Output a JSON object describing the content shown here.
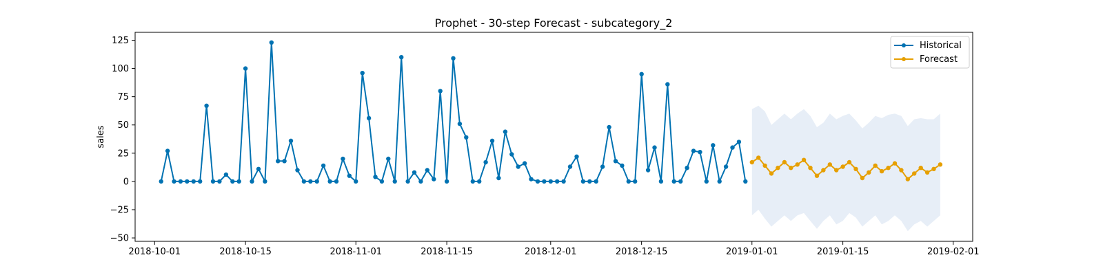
{
  "chart_data": {
    "type": "line",
    "title": "Prophet - 30-step Forecast - subcategory_2",
    "xlabel": "",
    "ylabel": "sales",
    "x_start": "2018-10-02",
    "x_domain": [
      "2018-09-28",
      "2019-02-04"
    ],
    "ylim": [
      -53,
      132
    ],
    "x_ticks": [
      {
        "date": "2018-10-01",
        "label": "2018-10-01"
      },
      {
        "date": "2018-10-15",
        "label": "2018-10-15"
      },
      {
        "date": "2018-11-01",
        "label": "2018-11-01"
      },
      {
        "date": "2018-11-15",
        "label": "2018-11-15"
      },
      {
        "date": "2018-12-01",
        "label": "2018-12-01"
      },
      {
        "date": "2018-12-15",
        "label": "2018-12-15"
      },
      {
        "date": "2019-01-01",
        "label": "2019-01-01"
      },
      {
        "date": "2019-01-15",
        "label": "2019-01-15"
      },
      {
        "date": "2019-02-01",
        "label": "2019-02-01"
      }
    ],
    "y_ticks": [
      -50,
      -25,
      0,
      25,
      50,
      75,
      100,
      125
    ],
    "y_tick_labels": [
      "−50",
      "−25",
      "0",
      "25",
      "50",
      "75",
      "100",
      "125"
    ],
    "grid": false,
    "legend_position": "top-right",
    "series": [
      {
        "name": "Historical",
        "color": "#0072b2",
        "values": [
          0,
          27,
          0,
          0,
          0,
          0,
          0,
          67,
          0,
          0,
          6,
          0,
          0,
          100,
          0,
          11,
          0,
          123,
          18,
          18,
          36,
          10,
          0,
          0,
          0,
          14,
          0,
          0,
          20,
          5,
          0,
          96,
          56,
          4,
          0,
          20,
          0,
          110,
          0,
          8,
          0,
          10,
          2,
          80,
          0,
          109,
          51,
          39,
          0,
          0,
          17,
          36,
          3,
          44,
          24,
          13,
          16,
          2,
          0,
          0,
          0,
          0,
          0,
          13,
          22,
          0,
          0,
          0,
          13,
          48,
          18,
          14,
          0,
          0,
          95,
          10,
          30,
          0,
          86,
          0,
          0,
          12,
          27,
          26,
          0,
          32,
          0,
          13,
          30,
          35,
          0
        ]
      },
      {
        "name": "Forecast",
        "color": "#e69f00",
        "values": [
          17,
          21,
          14,
          7,
          12,
          17,
          12,
          15,
          19,
          12,
          5,
          10,
          15,
          10,
          13,
          17,
          11,
          3,
          8,
          14,
          9,
          12,
          16,
          10,
          2,
          7,
          12,
          8,
          11,
          15
        ],
        "interval_upper": [
          64,
          67,
          62,
          50,
          55,
          60,
          55,
          60,
          64,
          58,
          48,
          52,
          60,
          55,
          58,
          60,
          54,
          47,
          52,
          58,
          56,
          59,
          60,
          58,
          49,
          55,
          56,
          55,
          55,
          60
        ],
        "interval_lower": [
          -30,
          -25,
          -33,
          -40,
          -35,
          -30,
          -35,
          -30,
          -28,
          -35,
          -42,
          -35,
          -30,
          -38,
          -35,
          -28,
          -32,
          -40,
          -35,
          -30,
          -38,
          -35,
          -30,
          -35,
          -44,
          -38,
          -35,
          -40,
          -35,
          -30
        ]
      }
    ],
    "interval_fill": "#e7eef7"
  }
}
